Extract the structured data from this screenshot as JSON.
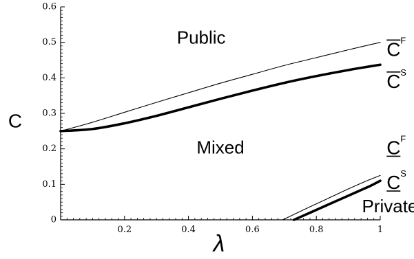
{
  "chart_data": {
    "type": "line",
    "xlabel": "λ",
    "ylabel": "C",
    "xlim": [
      0,
      1
    ],
    "ylim": [
      0,
      0.6
    ],
    "x_ticks": [
      0.2,
      0.4,
      0.6,
      0.8,
      1
    ],
    "x_tick_labels": [
      "0.2",
      "0.4",
      "0.6",
      "0.8",
      "1"
    ],
    "y_ticks": [
      0,
      0.1,
      0.2,
      0.3,
      0.4,
      0.5,
      0.6
    ],
    "y_tick_labels": [
      "0",
      "0.1",
      "0.2",
      "0.3",
      "0.4",
      "0.5",
      "0.6"
    ],
    "grid": false,
    "series": [
      {
        "name": "C̄F",
        "style": "thin",
        "x": [
          0,
          0.1,
          0.2,
          0.3,
          0.4,
          0.5,
          0.6,
          0.7,
          0.8,
          0.9,
          1.0
        ],
        "y": [
          0.25,
          0.275,
          0.303,
          0.331,
          0.358,
          0.385,
          0.41,
          0.435,
          0.457,
          0.479,
          0.5
        ]
      },
      {
        "name": "C̄S",
        "style": "thick",
        "x": [
          0,
          0.1,
          0.2,
          0.3,
          0.4,
          0.5,
          0.6,
          0.7,
          0.8,
          0.9,
          1.0
        ],
        "y": [
          0.25,
          0.256,
          0.272,
          0.293,
          0.317,
          0.341,
          0.364,
          0.386,
          0.405,
          0.422,
          0.437
        ]
      },
      {
        "name": "C̲F",
        "style": "thin",
        "x": [
          0.695,
          0.75,
          0.8,
          0.85,
          0.9,
          0.95,
          1.0
        ],
        "y": [
          0.0,
          0.024,
          0.045,
          0.066,
          0.087,
          0.107,
          0.125
        ]
      },
      {
        "name": "C̲S",
        "style": "thick",
        "x": [
          0.73,
          0.78,
          0.83,
          0.88,
          0.93,
          0.97,
          1.0
        ],
        "y": [
          0.0,
          0.02,
          0.04,
          0.06,
          0.08,
          0.096,
          0.11
        ]
      }
    ],
    "annotations": [
      {
        "text": "Public",
        "x": 0.44,
        "y": 0.51
      },
      {
        "text": "Mixed",
        "x": 0.5,
        "y": 0.2
      },
      {
        "text": "Private",
        "x": 1.03,
        "y": 0.035
      }
    ],
    "curve_labels": [
      {
        "main": "C",
        "sup": "F",
        "bar": "over",
        "x": 1.02,
        "y": 0.462
      },
      {
        "main": "C",
        "sup": "S",
        "bar": "over",
        "x": 1.02,
        "y": 0.372
      },
      {
        "main": "C",
        "sup": "F",
        "bar": "under",
        "x": 1.02,
        "y": 0.185
      },
      {
        "main": "C",
        "sup": "S",
        "bar": "under",
        "x": 1.02,
        "y": 0.087
      }
    ],
    "colors": {
      "line": "#000000",
      "axis": "#000000",
      "background": "#ffffff"
    }
  }
}
